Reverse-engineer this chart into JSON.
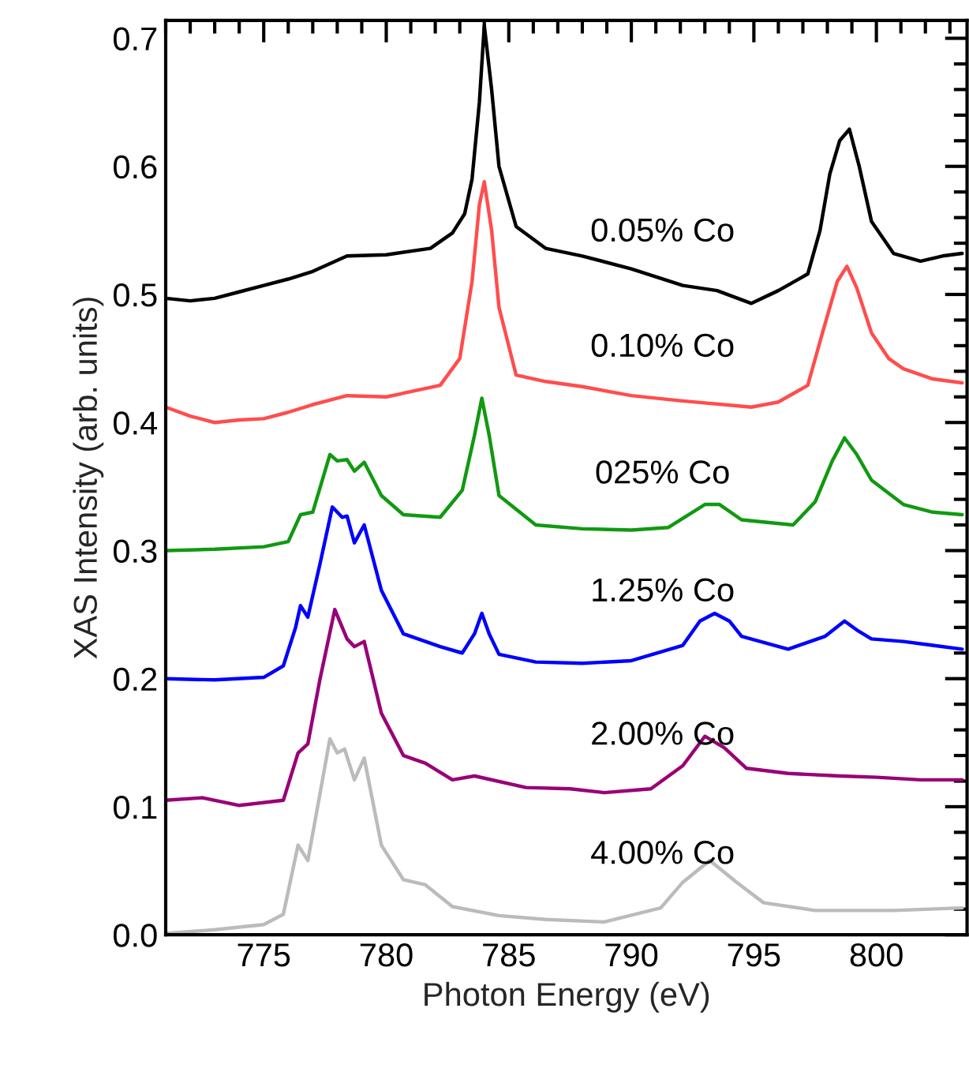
{
  "chart_data": {
    "type": "line",
    "xlabel": "Photon Energy (eV)",
    "ylabel": "XAS Intensity (arb. units)",
    "xlim": [
      771,
      803.7
    ],
    "ylim": [
      0,
      0.714
    ],
    "xticks": [
      775,
      780,
      785,
      790,
      795,
      800
    ],
    "yticks": [
      {
        "value": 0,
        "label": "0.0"
      },
      0.1,
      0.2,
      0.3,
      0.4,
      0.5,
      0.6,
      0.7
    ],
    "grid": false,
    "legend": false,
    "marker": "none",
    "line_style": "solid",
    "series": [
      {
        "name": "0.05% Co",
        "color": "#000000",
        "x": [
          771.0,
          772,
          773,
          774,
          775,
          776,
          777,
          778.4,
          780,
          781.8,
          782.7,
          783.2,
          783.5,
          783.8,
          784.0,
          784.3,
          784.6,
          785.3,
          786.5,
          788,
          790,
          792.1,
          793.5,
          794.9,
          796,
          797.2,
          797.7,
          798.1,
          798.5,
          798.9,
          799.3,
          799.8,
          800.7,
          801.8,
          802.7,
          803.5
        ],
        "values": [
          0.497,
          0.495,
          0.497,
          0.502,
          0.507,
          0.512,
          0.518,
          0.53,
          0.531,
          0.536,
          0.548,
          0.563,
          0.59,
          0.65,
          0.71,
          0.66,
          0.6,
          0.553,
          0.536,
          0.53,
          0.52,
          0.507,
          0.503,
          0.493,
          0.503,
          0.516,
          0.55,
          0.594,
          0.62,
          0.629,
          0.6,
          0.557,
          0.532,
          0.526,
          0.53,
          0.532
        ]
      },
      {
        "name": "0.10% Co",
        "color": "#ff4d4d",
        "x": [
          771.0,
          772,
          773,
          774,
          775,
          776,
          777,
          778.4,
          780,
          782.2,
          783.0,
          783.5,
          783.8,
          784.0,
          784.3,
          784.6,
          785.3,
          786.5,
          788,
          790,
          792,
          794.9,
          796,
          797.2,
          797.8,
          798.4,
          798.8,
          799.2,
          799.8,
          800.5,
          801.1,
          802.3,
          803.5
        ],
        "values": [
          0.412,
          0.405,
          0.4,
          0.402,
          0.403,
          0.408,
          0.414,
          0.421,
          0.42,
          0.429,
          0.45,
          0.51,
          0.57,
          0.588,
          0.55,
          0.49,
          0.437,
          0.432,
          0.428,
          0.421,
          0.417,
          0.412,
          0.416,
          0.429,
          0.47,
          0.51,
          0.522,
          0.505,
          0.47,
          0.45,
          0.442,
          0.434,
          0.431
        ]
      },
      {
        "name": "025% Co",
        "color": "#119911",
        "x": [
          771.0,
          773,
          775,
          776.0,
          776.5,
          777.0,
          777.7,
          778.0,
          778.4,
          778.7,
          779.1,
          779.8,
          780.7,
          782.2,
          783.1,
          783.6,
          783.9,
          784.2,
          784.6,
          786.1,
          788,
          790,
          791.5,
          793.0,
          793.6,
          794.5,
          796.6,
          797.5,
          798.2,
          798.7,
          799.2,
          799.8,
          801.1,
          802.3,
          803.5
        ],
        "values": [
          0.3,
          0.301,
          0.303,
          0.307,
          0.328,
          0.33,
          0.375,
          0.37,
          0.371,
          0.362,
          0.369,
          0.343,
          0.328,
          0.326,
          0.347,
          0.39,
          0.419,
          0.39,
          0.343,
          0.32,
          0.317,
          0.316,
          0.318,
          0.336,
          0.336,
          0.324,
          0.32,
          0.338,
          0.37,
          0.388,
          0.375,
          0.355,
          0.336,
          0.33,
          0.328
        ]
      },
      {
        "name": "1.25% Co",
        "color": "#0000ff",
        "x": [
          771.0,
          773,
          775,
          775.8,
          776.3,
          776.5,
          776.8,
          777.3,
          777.8,
          778.2,
          778.4,
          778.7,
          779.1,
          779.8,
          780.7,
          782.2,
          783.1,
          783.6,
          783.9,
          784.2,
          784.6,
          786.1,
          788,
          790,
          792.1,
          792.8,
          793.4,
          794.0,
          794.5,
          796.4,
          797.9,
          798.7,
          799.2,
          799.8,
          801.1,
          802.3,
          803.5
        ],
        "values": [
          0.2,
          0.199,
          0.201,
          0.21,
          0.24,
          0.257,
          0.248,
          0.29,
          0.334,
          0.326,
          0.327,
          0.306,
          0.32,
          0.269,
          0.235,
          0.225,
          0.22,
          0.235,
          0.251,
          0.235,
          0.219,
          0.213,
          0.212,
          0.214,
          0.226,
          0.245,
          0.251,
          0.245,
          0.233,
          0.223,
          0.233,
          0.245,
          0.238,
          0.231,
          0.229,
          0.226,
          0.223
        ]
      },
      {
        "name": "2.00% Co",
        "color": "#990077",
        "x": [
          771.0,
          772.5,
          774.0,
          775.8,
          776.4,
          776.8,
          777.3,
          777.9,
          778.4,
          778.7,
          779.1,
          779.8,
          780.7,
          781.6,
          782.7,
          783.6,
          785.7,
          787.5,
          788.9,
          790.8,
          792.1,
          793.0,
          793.8,
          794.7,
          796.4,
          798.5,
          800,
          801.8,
          803.5
        ],
        "values": [
          0.105,
          0.107,
          0.101,
          0.105,
          0.142,
          0.149,
          0.2,
          0.254,
          0.231,
          0.225,
          0.229,
          0.173,
          0.14,
          0.134,
          0.121,
          0.124,
          0.115,
          0.114,
          0.111,
          0.114,
          0.132,
          0.155,
          0.146,
          0.13,
          0.126,
          0.124,
          0.123,
          0.121,
          0.121
        ]
      },
      {
        "name": "4.00% Co",
        "color": "#bbbbbb",
        "x": [
          771.0,
          773,
          775.0,
          775.8,
          776.4,
          776.8,
          777.2,
          777.7,
          778.0,
          778.3,
          778.7,
          779.1,
          779.8,
          780.7,
          781.6,
          782.7,
          784.6,
          786.5,
          788.9,
          791.2,
          792.1,
          793.2,
          794.3,
          795.4,
          797.5,
          800.7,
          803.5
        ],
        "values": [
          0.001,
          0.004,
          0.008,
          0.016,
          0.07,
          0.058,
          0.1,
          0.153,
          0.142,
          0.145,
          0.121,
          0.138,
          0.07,
          0.043,
          0.039,
          0.022,
          0.015,
          0.012,
          0.01,
          0.021,
          0.041,
          0.058,
          0.041,
          0.025,
          0.019,
          0.019,
          0.021
        ]
      }
    ]
  }
}
